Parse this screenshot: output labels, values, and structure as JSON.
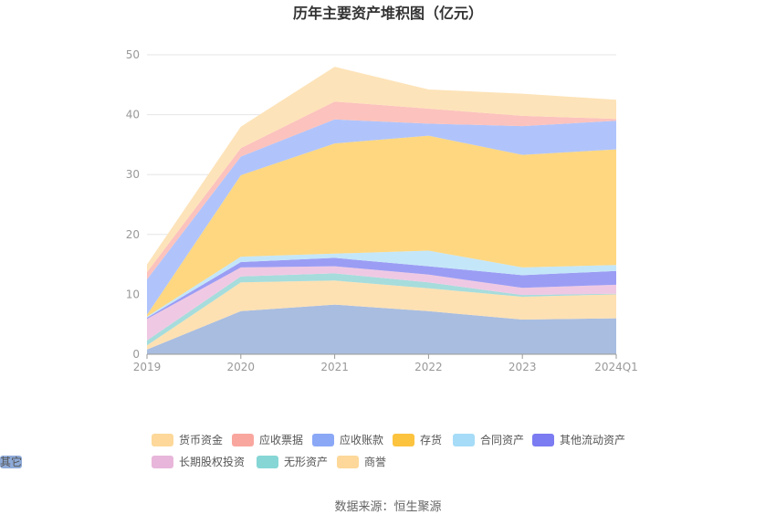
{
  "chart_data": {
    "type": "area",
    "title": "历年主要资产堆积图（亿元）",
    "categories": [
      "2019",
      "2020",
      "2021",
      "2022",
      "2023",
      "2024Q1"
    ],
    "y_ticks": [
      0,
      10,
      20,
      30,
      40,
      50
    ],
    "ylim": [
      0,
      50
    ],
    "grid": true,
    "legend_position": "bottom",
    "series": [
      {
        "name": "其它",
        "color": "#a9bde0",
        "values": [
          0.8,
          7.2,
          8.3,
          7.2,
          5.8,
          6.0
        ]
      },
      {
        "name": "商誉",
        "color": "#fde1b3",
        "values": [
          0.7,
          4.8,
          4.0,
          3.8,
          3.8,
          4.0
        ]
      },
      {
        "name": "无形资产",
        "color": "#a6dcdc",
        "values": [
          0.8,
          1.0,
          1.2,
          1.0,
          0.3,
          0.1
        ]
      },
      {
        "name": "长期股权投资",
        "color": "#efc9e3",
        "values": [
          3.6,
          1.5,
          1.2,
          1.3,
          1.2,
          1.5
        ]
      },
      {
        "name": "其他流动资产",
        "color": "#9b9df4",
        "values": [
          0.2,
          0.9,
          1.4,
          1.4,
          2.1,
          2.3
        ]
      },
      {
        "name": "合同资产",
        "color": "#c4e6f9",
        "values": [
          0.2,
          0.9,
          0.7,
          2.6,
          1.3,
          1.0
        ]
      },
      {
        "name": "存货",
        "color": "#fed780",
        "values": [
          0.3,
          13.6,
          18.4,
          19.2,
          18.8,
          19.3
        ]
      },
      {
        "name": "应收账款",
        "color": "#b0c4fb",
        "values": [
          5.9,
          3.1,
          4.0,
          2.0,
          4.8,
          4.8
        ]
      },
      {
        "name": "应收票据",
        "color": "#fcc2bd",
        "values": [
          1.2,
          1.4,
          3.0,
          2.5,
          1.7,
          0.3
        ]
      },
      {
        "name": "货币资金",
        "color": "#fde3b9",
        "values": [
          1.3,
          3.6,
          5.8,
          3.2,
          3.7,
          3.2
        ]
      }
    ],
    "legend": [
      {
        "name": "货币资金",
        "color": "#fdd89a"
      },
      {
        "name": "应收票据",
        "color": "#f9a69e"
      },
      {
        "name": "应收账款",
        "color": "#8ba8f7"
      },
      {
        "name": "存货",
        "color": "#fcc33f"
      },
      {
        "name": "合同资产",
        "color": "#a6dcf7"
      },
      {
        "name": "其他流动资产",
        "color": "#7b7bf2"
      },
      {
        "name": "长期股权投资",
        "color": "#e8b6da"
      },
      {
        "name": "无形资产",
        "color": "#86d6d6"
      },
      {
        "name": "商誉",
        "color": "#fdd89a"
      },
      {
        "name": "其它",
        "color": "#8eaad8"
      }
    ]
  },
  "source_text": "数据来源：恒生聚源"
}
